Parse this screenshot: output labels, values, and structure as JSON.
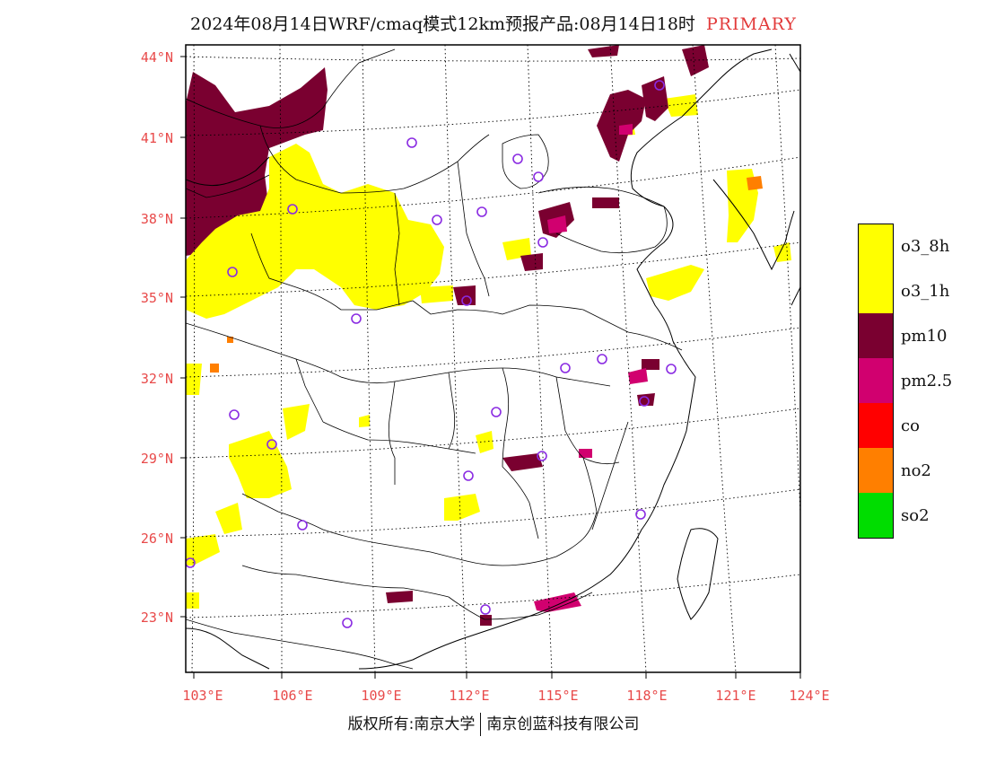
{
  "title": {
    "text": "2024年08月14日WRF/cmaq模式12km预报产品:08月14日18时",
    "tag": "PRIMARY",
    "tag_color": "#e23a3a"
  },
  "map": {
    "lat_labels": [
      "44°N",
      "41°N",
      "38°N",
      "35°N",
      "32°N",
      "29°N",
      "26°N",
      "23°N"
    ],
    "lon_labels": [
      "103°E",
      "106°E",
      "109°E",
      "112°E",
      "115°E",
      "118°E",
      "121°E",
      "124°E"
    ],
    "label_color": "#e84a4a"
  },
  "legend": {
    "items": [
      {
        "label": "o3_8h",
        "color": "#ffff00"
      },
      {
        "label": "o3_1h",
        "color": "#ffff00"
      },
      {
        "label": "pm10",
        "color": "#7a0030"
      },
      {
        "label": "pm2.5",
        "color": "#d1006f"
      },
      {
        "label": "co",
        "color": "#ff0000"
      },
      {
        "label": "no2",
        "color": "#ff7f00"
      },
      {
        "label": "so2",
        "color": "#00dd00"
      }
    ]
  },
  "footer": {
    "left": "版权所有:南京大学",
    "right": "南京创蓝科技有限公司"
  }
}
